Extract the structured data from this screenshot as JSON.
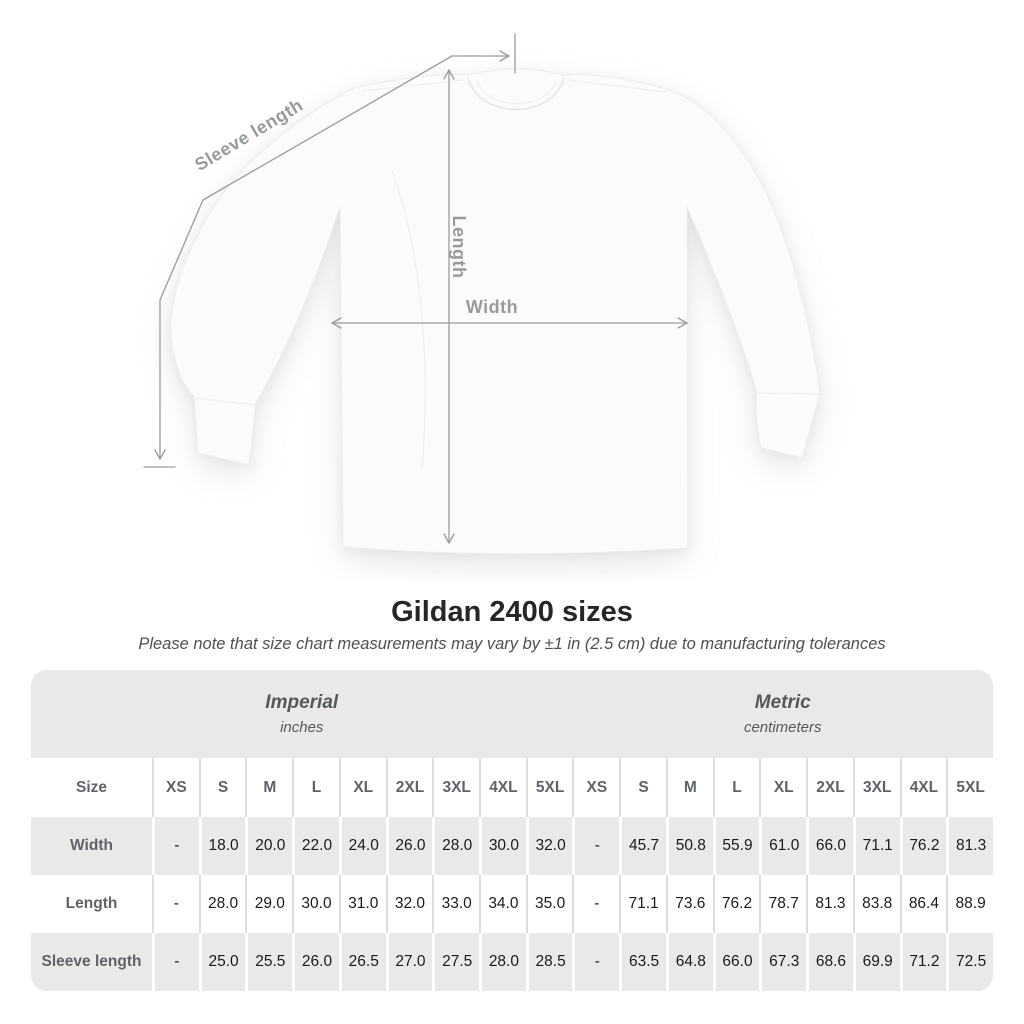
{
  "title": "Gildan 2400 sizes",
  "subtitle": "Please note that size chart measurements may vary by ±1 in (2.5 cm) due to manufacturing tolerances",
  "diagram": {
    "sleeve_length_label": "Sleeve length",
    "length_label": "Length",
    "width_label": "Width"
  },
  "table": {
    "size_label": "Size",
    "groups": [
      {
        "name": "Imperial",
        "unit": "inches"
      },
      {
        "name": "Metric",
        "unit": "centimeters"
      }
    ],
    "sizes": [
      "XS",
      "S",
      "M",
      "L",
      "XL",
      "2XL",
      "3XL",
      "4XL",
      "5XL"
    ],
    "rows": [
      {
        "label": "Width",
        "imperial": [
          "-",
          "18.0",
          "20.0",
          "22.0",
          "24.0",
          "26.0",
          "28.0",
          "30.0",
          "32.0"
        ],
        "metric": [
          "-",
          "45.7",
          "50.8",
          "55.9",
          "61.0",
          "66.0",
          "71.1",
          "76.2",
          "81.3"
        ]
      },
      {
        "label": "Length",
        "imperial": [
          "-",
          "28.0",
          "29.0",
          "30.0",
          "31.0",
          "32.0",
          "33.0",
          "34.0",
          "35.0"
        ],
        "metric": [
          "-",
          "71.1",
          "73.6",
          "76.2",
          "78.7",
          "81.3",
          "83.8",
          "86.4",
          "88.9"
        ]
      },
      {
        "label": "Sleeve length",
        "imperial": [
          "-",
          "25.0",
          "25.5",
          "26.0",
          "26.5",
          "27.0",
          "27.5",
          "28.0",
          "28.5"
        ],
        "metric": [
          "-",
          "63.5",
          "64.8",
          "66.0",
          "67.3",
          "68.6",
          "69.9",
          "71.2",
          "72.5"
        ]
      }
    ]
  },
  "colors": {
    "table_band_bg": "#e9e9e9",
    "label_text": "#5f6368",
    "value_text": "#1b1b1d",
    "measure_line": "#9b9b9b",
    "title_text": "#262626"
  }
}
